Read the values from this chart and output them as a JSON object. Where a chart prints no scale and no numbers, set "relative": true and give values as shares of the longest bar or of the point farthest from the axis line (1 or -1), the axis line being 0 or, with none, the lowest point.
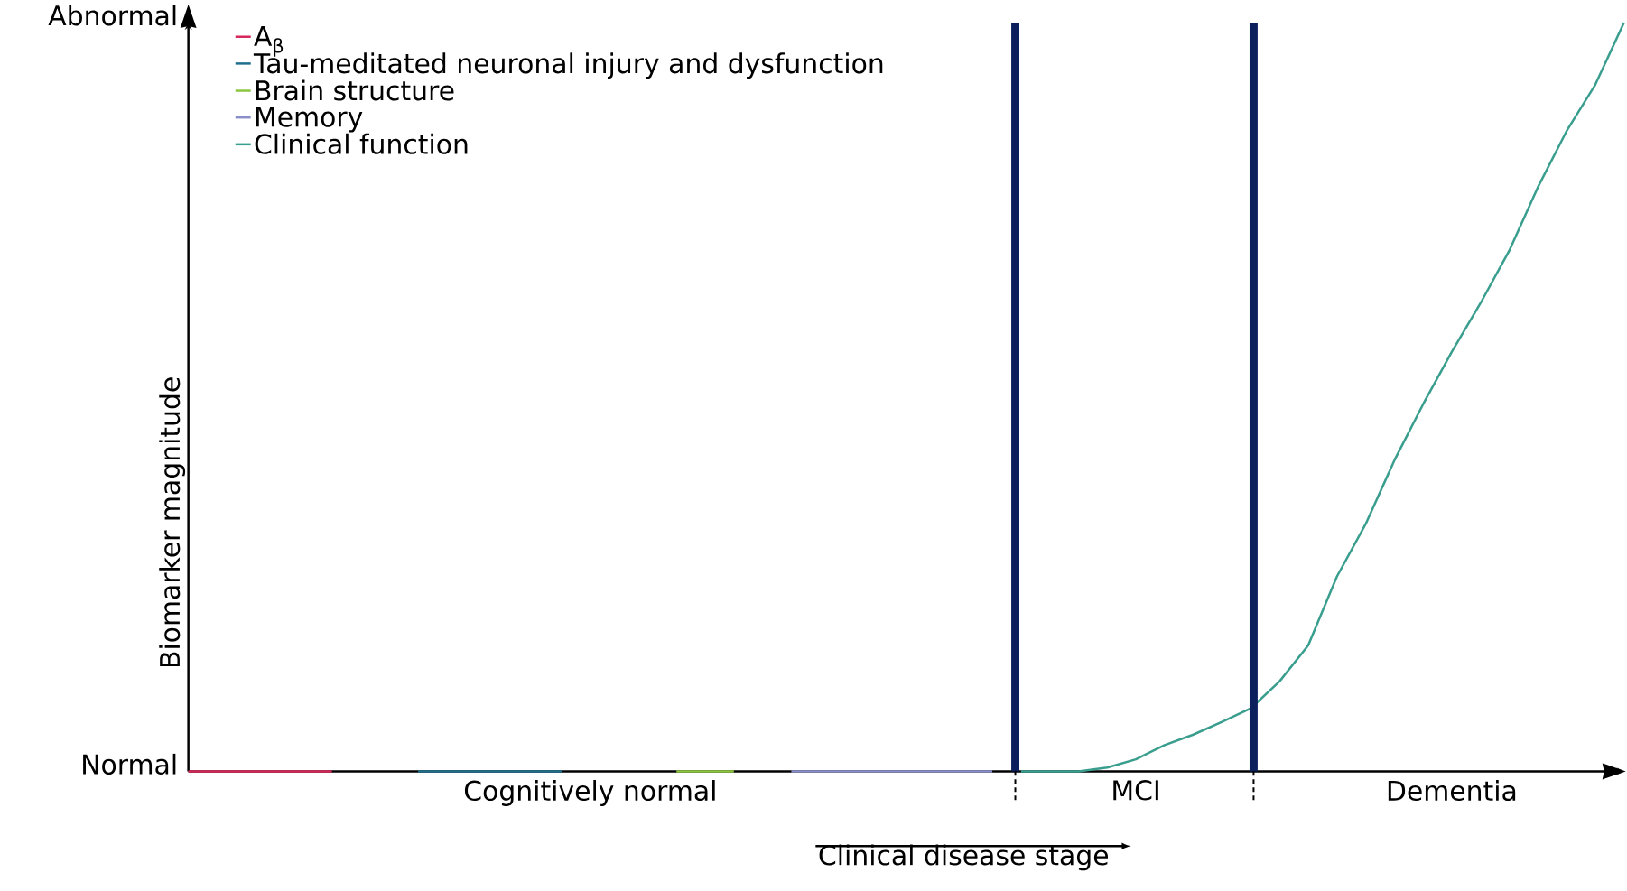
{
  "chart_data": {
    "type": "line",
    "xlabel": "Clinical disease stage",
    "ylabel": "Biomarker magnitude",
    "relative": true,
    "annotations": [
      "Normal",
      "Abnormal"
    ],
    "categories": [
      null,
      null,
      null,
      null,
      null,
      null,
      null,
      null,
      null,
      null,
      null,
      null,
      null,
      null,
      "Cognitively normal",
      null,
      null,
      null,
      null,
      null,
      null,
      null,
      null,
      null,
      null,
      null,
      null,
      null,
      null,
      null,
      null,
      null,
      null,
      "MCI",
      null,
      null,
      null,
      null,
      null,
      null,
      null,
      null,
      null,
      null,
      "Dementia",
      null,
      null,
      null,
      null,
      null,
      null
    ],
    "legend": "top left",
    "marker": "none",
    "line_style": "solid",
    "series": [
      {
        "name": "A$_{β}$",
        "color": "#d6265a",
        "values": [
          0,
          0,
          0,
          0,
          0,
          0,
          null,
          null,
          null,
          null,
          null,
          null,
          null,
          null,
          null,
          null,
          null,
          null,
          null,
          null,
          null,
          null,
          null,
          null,
          null,
          null,
          null,
          null,
          null,
          null,
          null,
          null,
          null,
          null,
          null,
          null,
          null,
          null,
          null,
          null,
          null,
          null,
          null,
          null,
          null,
          null,
          null,
          null,
          null,
          null,
          null
        ]
      },
      {
        "name": "Tau-meditated neuronal injury and dysfunction",
        "color": "#1f6e8c",
        "values": [
          null,
          null,
          null,
          null,
          null,
          null,
          null,
          null,
          0,
          0,
          0,
          0,
          0,
          0,
          null,
          null,
          null,
          null,
          null,
          null,
          null,
          null,
          null,
          null,
          null,
          null,
          null,
          null,
          null,
          null,
          null,
          null,
          null,
          null,
          null,
          null,
          null,
          null,
          null,
          null,
          null,
          null,
          null,
          null,
          null,
          null,
          null,
          null,
          null,
          null,
          null
        ]
      },
      {
        "name": "Brain structure",
        "color": "#8cc63f",
        "values": [
          null,
          null,
          null,
          null,
          null,
          null,
          null,
          null,
          null,
          null,
          null,
          null,
          null,
          null,
          null,
          null,
          null,
          0,
          0,
          0,
          null,
          null,
          null,
          null,
          null,
          null,
          null,
          null,
          null,
          null,
          null,
          null,
          null,
          null,
          null,
          null,
          null,
          null,
          null,
          null,
          null,
          null,
          null,
          null,
          null,
          null,
          null,
          null,
          null,
          null,
          null
        ]
      },
      {
        "name": "Memory",
        "color": "#8a8fc9",
        "values": [
          null,
          null,
          null,
          null,
          null,
          null,
          null,
          null,
          null,
          null,
          null,
          null,
          null,
          null,
          null,
          null,
          null,
          null,
          null,
          null,
          null,
          0,
          0,
          0,
          0,
          0,
          0,
          0,
          0,
          null,
          null,
          null,
          null,
          null,
          null,
          null,
          null,
          null,
          null,
          null,
          null,
          null,
          null,
          null,
          null,
          null,
          null,
          null,
          null,
          null,
          null
        ]
      },
      {
        "name": "Clinical function",
        "color": "#3a9e8e",
        "values": [
          null,
          null,
          null,
          null,
          null,
          null,
          null,
          null,
          null,
          null,
          null,
          null,
          null,
          null,
          null,
          null,
          null,
          null,
          null,
          null,
          null,
          null,
          null,
          null,
          null,
          null,
          null,
          null,
          null,
          0,
          0,
          0,
          0.005,
          0.016,
          0.035,
          0.049,
          0.066,
          0.084,
          0.12,
          0.168,
          0.26,
          0.33,
          0.415,
          0.49,
          0.56,
          0.625,
          0.695,
          0.78,
          0.855,
          0.917,
          1.0
        ]
      }
    ]
  }
}
